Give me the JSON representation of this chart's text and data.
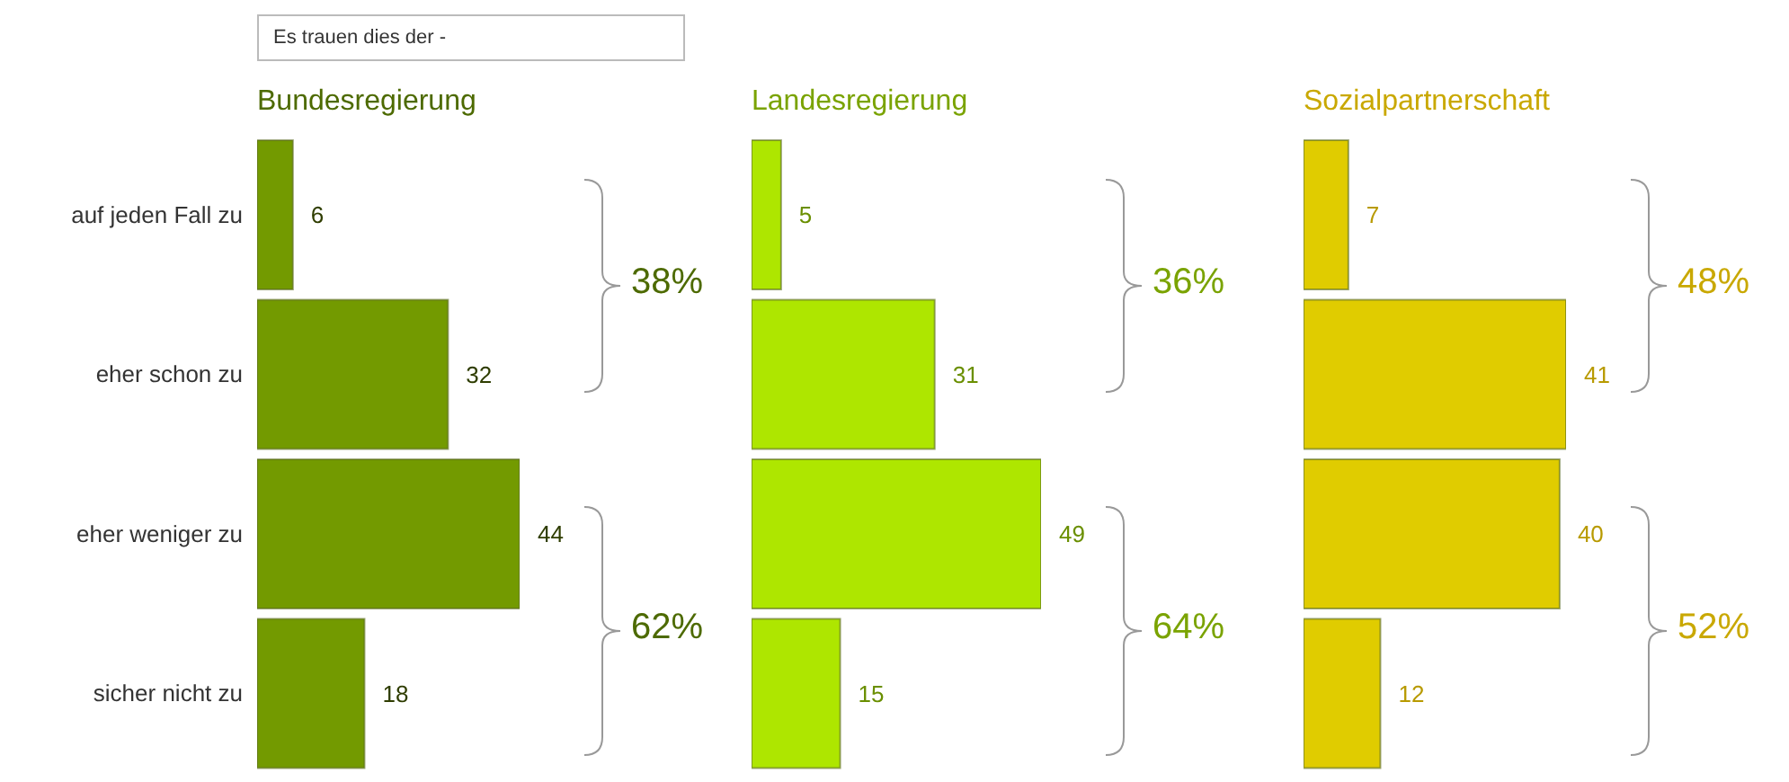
{
  "chart_data": [
    {
      "type": "bar",
      "orientation": "horizontal",
      "title": "Bundesregierung",
      "subtitle": "Es trauen dies der -",
      "categories": [
        "auf jeden Fall zu",
        "eher schon zu",
        "eher weniger zu",
        "sicher nicht zu"
      ],
      "values": [
        6,
        32,
        44,
        18
      ],
      "color": "#739a00",
      "data_labels": true,
      "tick_labels": "y",
      "annotations": [
        "38%",
        "62%"
      ]
    },
    {
      "type": "bar",
      "orientation": "horizontal",
      "title": "Landesregierung",
      "categories": [
        null,
        null,
        null,
        null
      ],
      "values": [
        5,
        31,
        49,
        15
      ],
      "color": "#aee600",
      "data_labels": true,
      "tick_labels": false,
      "annotations": [
        "36%",
        "64%"
      ]
    },
    {
      "type": "bar",
      "orientation": "horizontal",
      "title": "Sozialpartnerschaft",
      "categories": [
        null,
        null,
        null,
        null
      ],
      "values": [
        7,
        41,
        40,
        12
      ],
      "color": "#e0cc00",
      "data_labels": true,
      "tick_labels": false,
      "annotations": [
        "48%",
        "52%"
      ]
    }
  ]
}
